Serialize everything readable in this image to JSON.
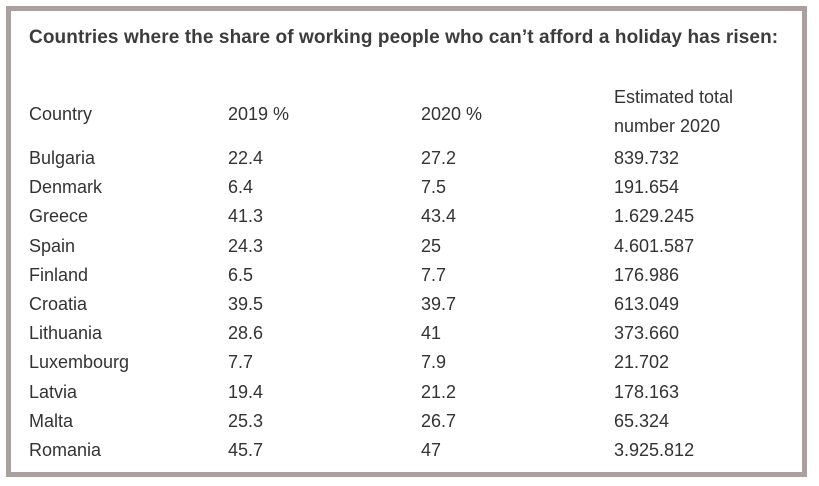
{
  "chart_data": {
    "type": "table",
    "title": "Countries where the share of working people who can’t afford a holiday has risen:",
    "columns": [
      "Country",
      "2019 %",
      "2020 %",
      "Estimated total number 2020"
    ],
    "rows": [
      {
        "country": "Bulgaria",
        "y2019": "22.4",
        "y2020": "27.2",
        "total": "839.732"
      },
      {
        "country": "Denmark",
        "y2019": "6.4",
        "y2020": "7.5",
        "total": "191.654"
      },
      {
        "country": "Greece",
        "y2019": "41.3",
        "y2020": "43.4",
        "total": "1.629.245"
      },
      {
        "country": "Spain",
        "y2019": "24.3",
        "y2020": "25",
        "total": "4.601.587"
      },
      {
        "country": "Finland",
        "y2019": "6.5",
        "y2020": "7.7",
        "total": "176.986"
      },
      {
        "country": "Croatia",
        "y2019": "39.5",
        "y2020": "39.7",
        "total": "613.049"
      },
      {
        "country": "Lithuania",
        "y2019": "28.6",
        "y2020": "41",
        "total": "373.660"
      },
      {
        "country": "Luxembourg",
        "y2019": "7.7",
        "y2020": "7.9",
        "total": "21.702"
      },
      {
        "country": "Latvia",
        "y2019": "19.4",
        "y2020": "21.2",
        "total": "178.163"
      },
      {
        "country": "Malta",
        "y2019": "25.3",
        "y2020": "26.7",
        "total": "65.324"
      },
      {
        "country": "Romania",
        "y2019": "45.7",
        "y2020": "47",
        "total": "3.925.812"
      }
    ]
  },
  "colors": {
    "frame": "#aaa0a0",
    "text": "#333333",
    "title": "#3c3c3c"
  }
}
